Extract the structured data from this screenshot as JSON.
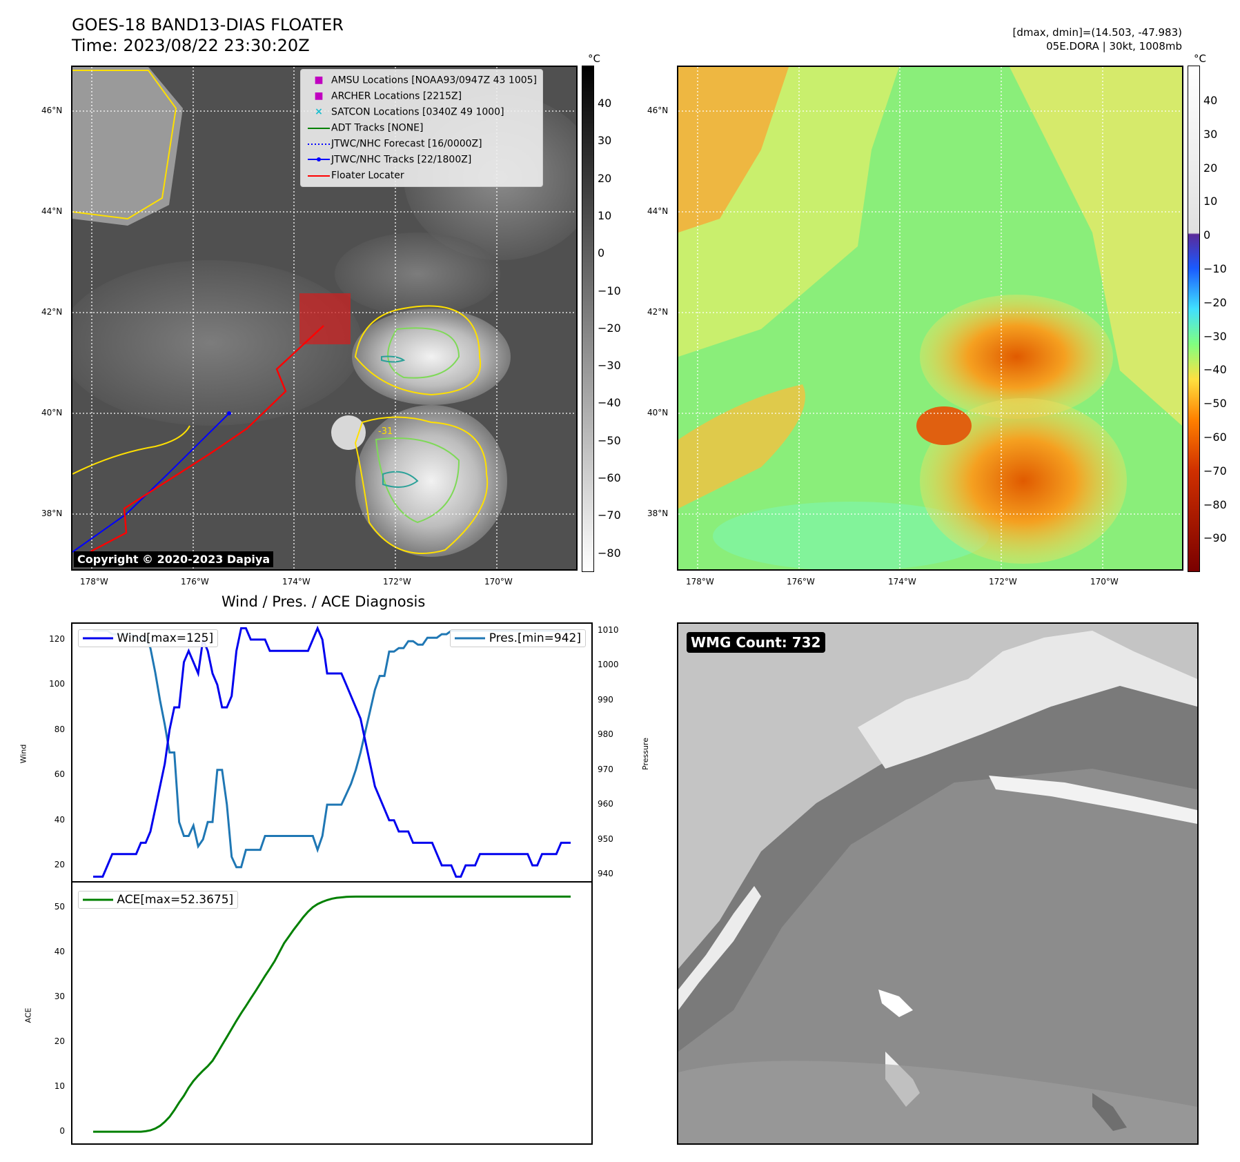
{
  "header": {
    "title_line1": "GOES-18 BAND13-DIAS FLOATER",
    "title_line2": "Time: 2023/08/22 23:30:20Z",
    "meta_line1": "[dmax, dmin]=(14.503, -47.983)",
    "meta_line2": "05E.DORA | 30kt, 1008mb"
  },
  "map": {
    "lat_labels": [
      "46°N",
      "44°N",
      "42°N",
      "40°N",
      "38°N"
    ],
    "lon_labels": [
      "178°W",
      "176°W",
      "174°W",
      "172°W",
      "170°W"
    ],
    "copyright": "Copyright © 2020-2023 Dapiya",
    "contour_label": "-31",
    "legend": [
      {
        "label": "AMSU Locations [NOAA93/0947Z 43 1005]",
        "marker": "square",
        "color": "#c000c0"
      },
      {
        "label": "ARCHER Locations [2215Z]",
        "marker": "square",
        "color": "#c000c0"
      },
      {
        "label": "SATCON Locations [0340Z 49 1000]",
        "marker": "x",
        "color": "#17becf"
      },
      {
        "label": "ADT Tracks [NONE]",
        "marker": "line",
        "color": "#008000"
      },
      {
        "label": "JTWC/NHC Forecast [16/0000Z]",
        "marker": "dotted",
        "color": "#0000ff"
      },
      {
        "label": "JTWC/NHC Tracks [22/1800Z]",
        "marker": "line-dot",
        "color": "#0000ff"
      },
      {
        "label": "Floater Locater",
        "marker": "line",
        "color": "#ff0000"
      }
    ]
  },
  "colorbar_left": {
    "unit": "°C",
    "ticks": [
      "40",
      "30",
      "20",
      "10",
      "0",
      "−10",
      "−20",
      "−30",
      "−40",
      "−50",
      "−60",
      "−70",
      "−80"
    ]
  },
  "colorbar_right": {
    "unit": "°C",
    "ticks": [
      "40",
      "30",
      "20",
      "10",
      "0",
      "−10",
      "−20",
      "−30",
      "−40",
      "−50",
      "−60",
      "−70",
      "−80",
      "−90"
    ]
  },
  "diagnosis": {
    "title": "Wind / Pres. / ACE Diagnosis",
    "wind_legend": "Wind[max=125]",
    "pres_legend": "Pres.[min=942]",
    "ace_legend": "ACE[max=52.3675]",
    "wind_ylabel": "Wind",
    "pres_ylabel": "Pressure",
    "ace_ylabel": "ACE",
    "wind_ticks": [
      "120",
      "100",
      "80",
      "60",
      "40",
      "20"
    ],
    "pres_ticks": [
      "1010",
      "1000",
      "990",
      "980",
      "970",
      "960",
      "950",
      "940"
    ],
    "ace_ticks": [
      "50",
      "40",
      "30",
      "20",
      "10",
      "0"
    ]
  },
  "wmg": {
    "label": "WMG Count: 732"
  },
  "chart_data": [
    {
      "type": "line",
      "title": "Wind / Pres. / ACE Diagnosis",
      "x": [
        0,
        1,
        2,
        3,
        4,
        5,
        6,
        7,
        8,
        9,
        10,
        11,
        12,
        13,
        14,
        15,
        16,
        17,
        18,
        19,
        20,
        21,
        22,
        23,
        24,
        25,
        26,
        27,
        28,
        29,
        30,
        31,
        32,
        33,
        34,
        35,
        36,
        37,
        38,
        39,
        40,
        41,
        42,
        43,
        44,
        45,
        46,
        47,
        48,
        49,
        50,
        51,
        52,
        53,
        54,
        55,
        56,
        57,
        58,
        59,
        60,
        61,
        62,
        63,
        64,
        65,
        66,
        67,
        68,
        69,
        70,
        71,
        72,
        73,
        74,
        75,
        76,
        77,
        78,
        79,
        80,
        81,
        82,
        83,
        84,
        85,
        86,
        87,
        88,
        89,
        90,
        91,
        92,
        93,
        94,
        95,
        96,
        97,
        98,
        99,
        100
      ],
      "series": [
        {
          "name": "Wind[max=125]",
          "axis": "left",
          "color": "#0000ee",
          "values": [
            15,
            15,
            15,
            20,
            25,
            25,
            25,
            25,
            25,
            25,
            30,
            30,
            35,
            45,
            55,
            65,
            80,
            90,
            90,
            110,
            115,
            110,
            105,
            120,
            115,
            105,
            100,
            90,
            90,
            95,
            115,
            125,
            125,
            120,
            120,
            120,
            120,
            115,
            115,
            115,
            115,
            115,
            115,
            115,
            115,
            115,
            120,
            125,
            120,
            105,
            105,
            105,
            105,
            100,
            95,
            90,
            85,
            75,
            65,
            55,
            50,
            45,
            40,
            40,
            35,
            35,
            35,
            30,
            30,
            30,
            30,
            30,
            25,
            20,
            20,
            20,
            15,
            15,
            20,
            20,
            20,
            25,
            25,
            25,
            25,
            25,
            25,
            25,
            25,
            25,
            25,
            25,
            20,
            20,
            25,
            25,
            25,
            25,
            30,
            30,
            30
          ]
        },
        {
          "name": "Pres.[min=942]",
          "axis": "right",
          "color": "#1f77b4",
          "values": [
            1010,
            1010,
            1010,
            1010,
            1009,
            1009,
            1009,
            1009,
            1009,
            1008,
            1008,
            1008,
            1005,
            998,
            990,
            983,
            975,
            975,
            955,
            951,
            951,
            954,
            948,
            950,
            955,
            955,
            970,
            970,
            960,
            945,
            942,
            942,
            947,
            947,
            947,
            947,
            951,
            951,
            951,
            951,
            951,
            951,
            951,
            951,
            951,
            951,
            951,
            947,
            951,
            960,
            960,
            960,
            960,
            963,
            966,
            970,
            975,
            981,
            987,
            993,
            997,
            997,
            1004,
            1004,
            1005,
            1005,
            1007,
            1007,
            1006,
            1006,
            1008,
            1008,
            1008,
            1009,
            1009,
            1010,
            1010,
            1010,
            1010,
            1010,
            1010,
            1010,
            1010,
            1010,
            1010,
            1010,
            1010,
            1010,
            1010,
            1010,
            1010,
            1010,
            1010,
            1010,
            1010,
            1010,
            1010,
            1010,
            1010,
            1010,
            1010
          ]
        }
      ],
      "ylim": [
        13,
        127
      ],
      "y2lim": [
        938,
        1012
      ]
    },
    {
      "type": "line",
      "x": [
        0,
        1,
        2,
        3,
        4,
        5,
        6,
        7,
        8,
        9,
        10,
        11,
        12,
        13,
        14,
        15,
        16,
        17,
        18,
        19,
        20,
        21,
        22,
        23,
        24,
        25,
        26,
        27,
        28,
        29,
        30,
        31,
        32,
        33,
        34,
        35,
        36,
        37,
        38,
        39,
        40,
        41,
        42,
        43,
        44,
        45,
        46,
        47,
        48,
        49,
        50,
        51,
        52,
        53,
        54,
        55,
        56,
        57,
        58,
        59,
        60,
        61,
        62,
        63,
        64,
        65,
        66,
        67,
        68,
        69,
        70,
        71,
        72,
        73,
        74,
        75,
        76,
        77,
        78,
        79,
        80,
        81,
        82,
        83,
        84,
        85,
        86,
        87,
        88,
        89,
        90,
        91,
        92,
        93,
        94,
        95,
        96,
        97,
        98,
        99,
        100
      ],
      "series": [
        {
          "name": "ACE[max=52.3675]",
          "color": "#008000",
          "values": [
            0,
            0,
            0,
            0,
            0,
            0,
            0,
            0,
            0,
            0,
            0,
            0.1,
            0.3,
            0.7,
            1.3,
            2.2,
            3.3,
            4.8,
            6.5,
            8,
            9.8,
            11.3,
            12.5,
            13.6,
            14.6,
            15.8,
            17.5,
            19.3,
            21.1,
            22.9,
            24.7,
            26.4,
            28,
            29.7,
            31.3,
            33,
            34.7,
            36.3,
            38,
            40,
            42,
            43.5,
            45,
            46.4,
            47.8,
            49,
            50,
            50.7,
            51.2,
            51.6,
            51.9,
            52.1,
            52.2,
            52.3,
            52.35,
            52.3675,
            52.3675,
            52.3675,
            52.3675,
            52.3675,
            52.3675,
            52.3675,
            52.3675,
            52.3675,
            52.3675,
            52.3675,
            52.3675,
            52.3675,
            52.3675,
            52.3675,
            52.3675,
            52.3675,
            52.3675,
            52.3675,
            52.3675,
            52.3675,
            52.3675,
            52.3675,
            52.3675,
            52.3675,
            52.3675,
            52.3675,
            52.3675,
            52.3675,
            52.3675,
            52.3675,
            52.3675,
            52.3675,
            52.3675,
            52.3675,
            52.3675,
            52.3675,
            52.3675,
            52.3675,
            52.3675,
            52.3675,
            52.3675,
            52.3675,
            52.3675,
            52.3675,
            52.3675
          ]
        }
      ],
      "ylim": [
        -2.6,
        55.5
      ]
    }
  ]
}
